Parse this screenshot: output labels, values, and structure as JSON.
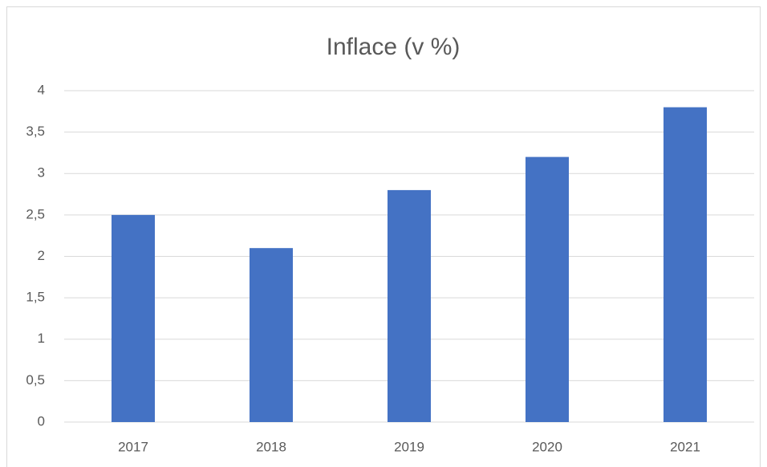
{
  "chart_data": {
    "type": "bar",
    "title": "Inflace (v %)",
    "categories": [
      "2017",
      "2018",
      "2019",
      "2020",
      "2021"
    ],
    "values": [
      2.5,
      2.1,
      2.8,
      3.2,
      3.8
    ],
    "color": "#4472c4",
    "ylim": [
      0,
      4
    ],
    "yticks": [
      0,
      {
        "value": 0.5,
        "label": "0,5"
      },
      1,
      {
        "value": 1.5,
        "label": "1,5"
      },
      2,
      {
        "value": 2.5,
        "label": "2,5"
      },
      3,
      {
        "value": 3.5,
        "label": "3,5"
      },
      4
    ],
    "grid": true
  }
}
